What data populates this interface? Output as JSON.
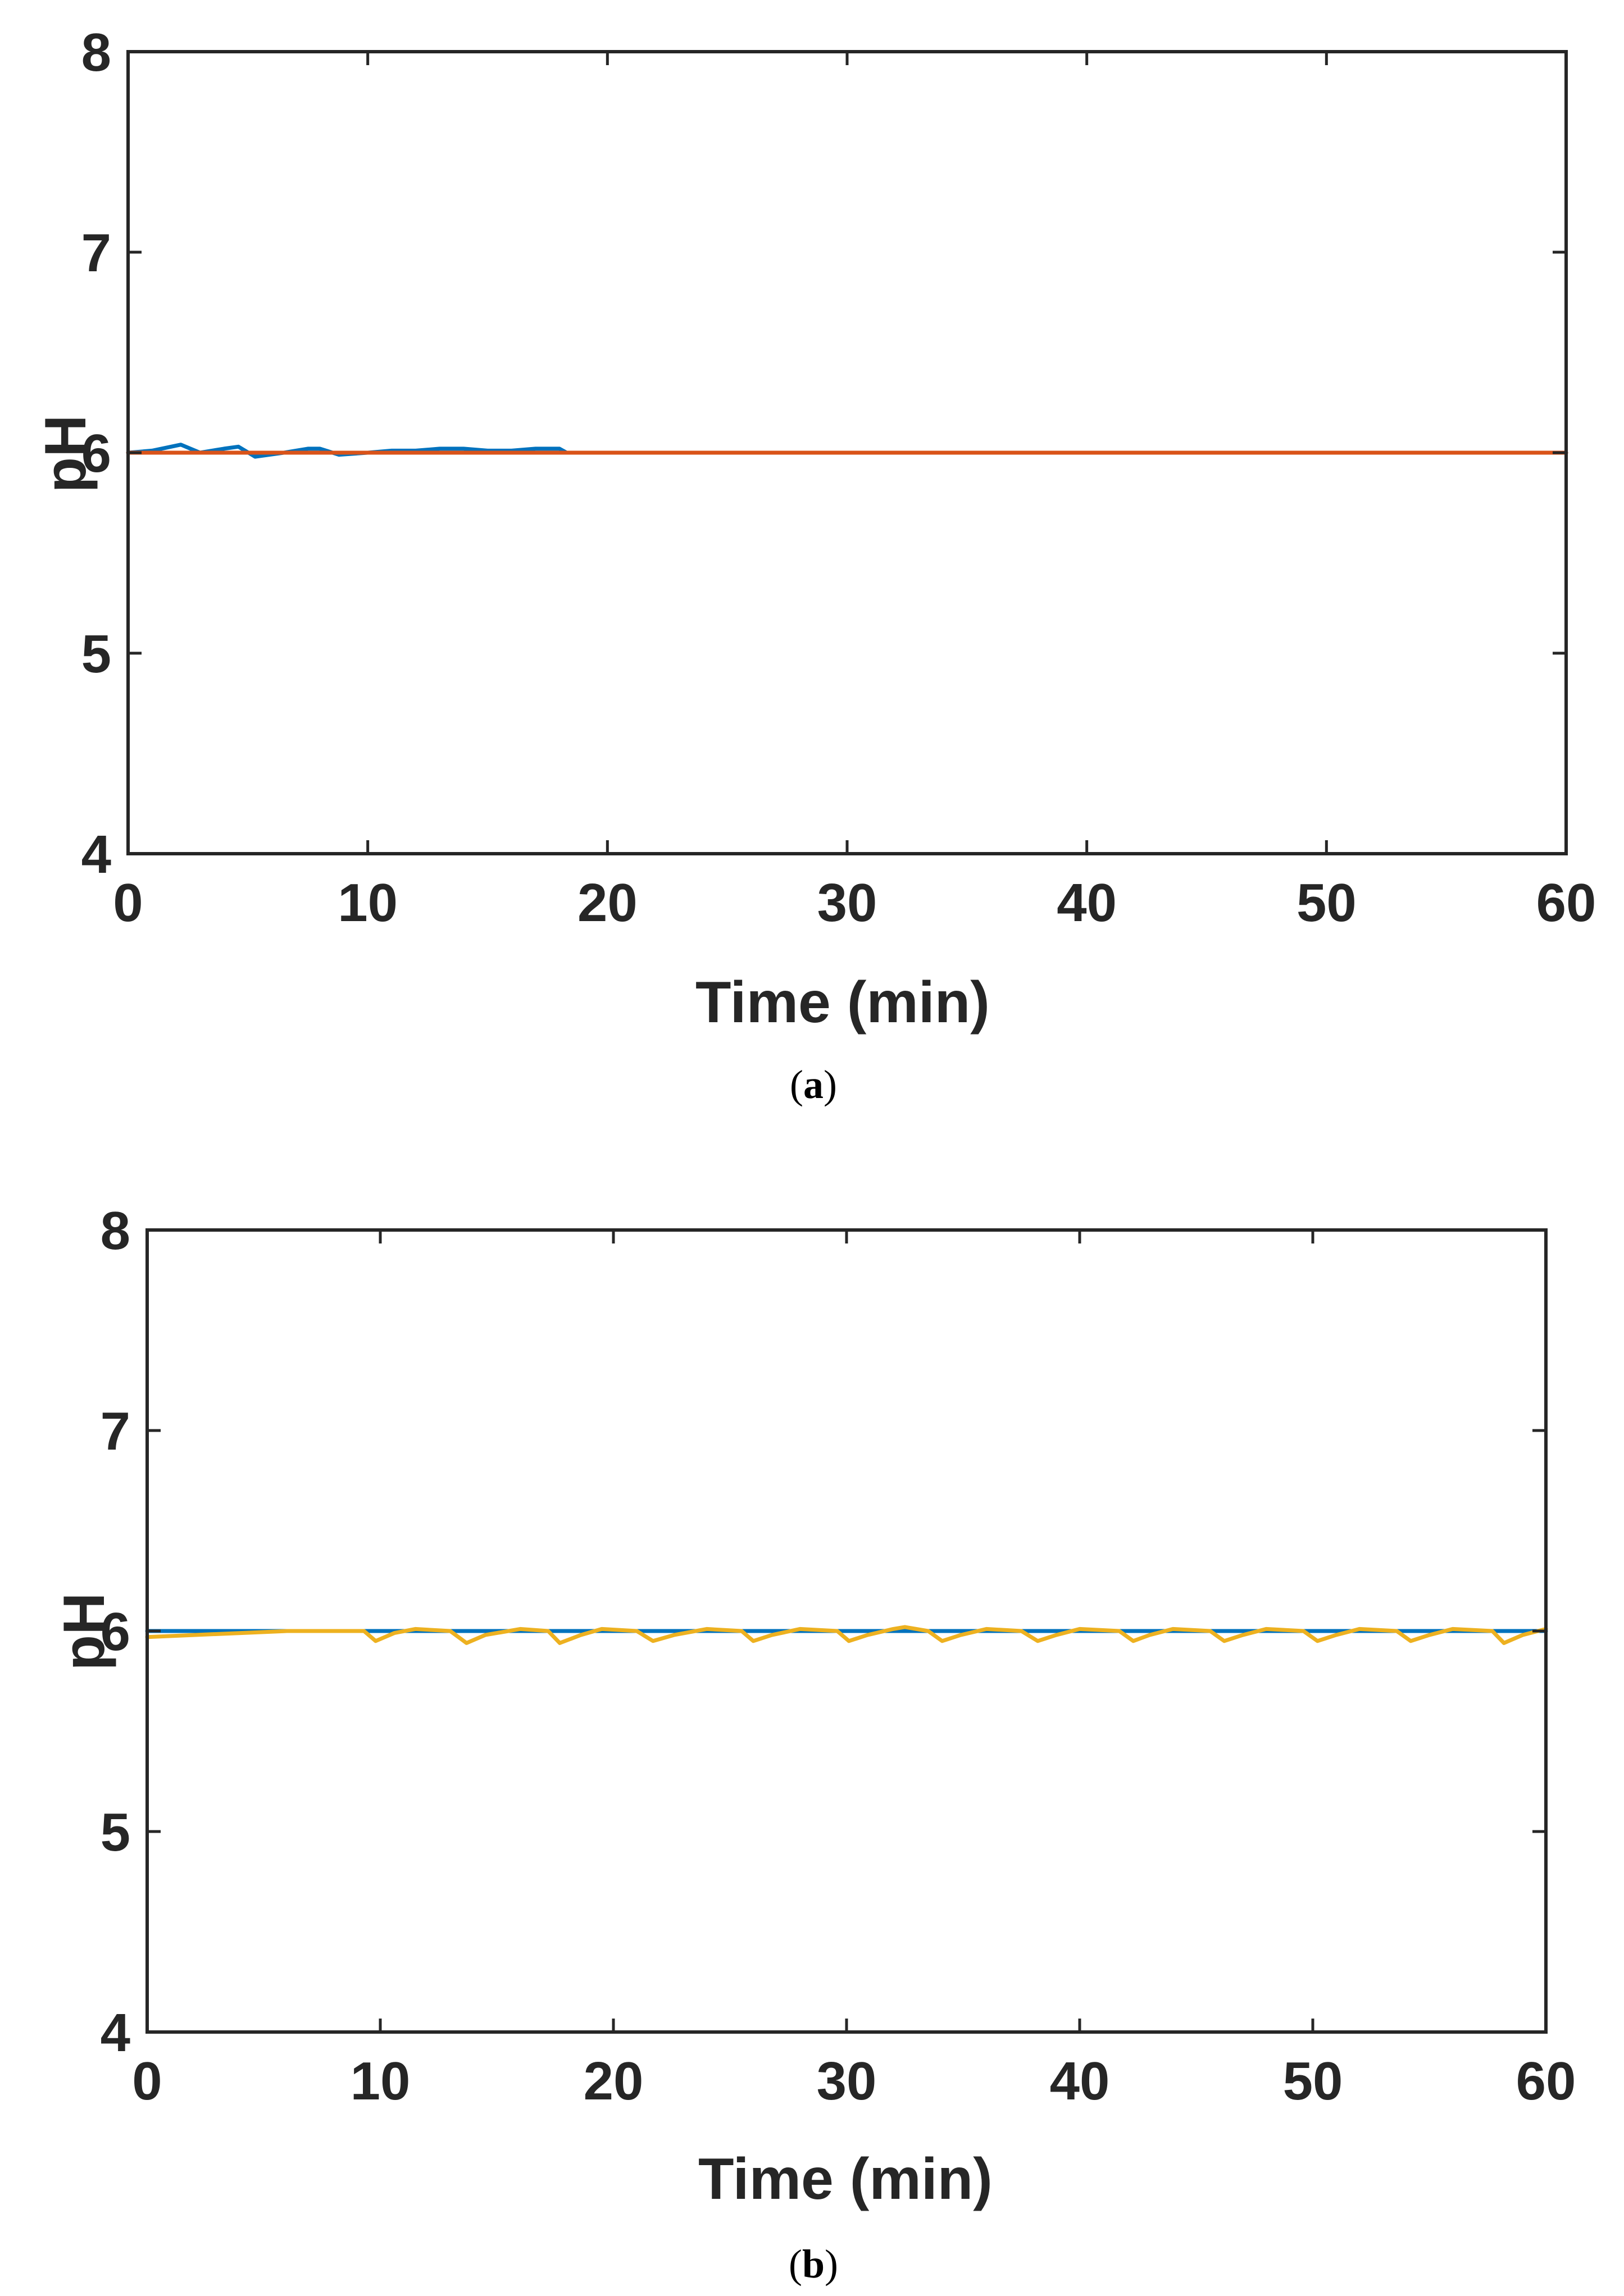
{
  "chart_data": [
    {
      "type": "line",
      "panel_label": "a",
      "title": "",
      "xlabel": "Time (min)",
      "ylabel": "pH",
      "xlim": [
        0,
        60
      ],
      "ylim": [
        4,
        8
      ],
      "xticks": [
        0,
        10,
        20,
        30,
        40,
        50,
        60
      ],
      "yticks": [
        4,
        5,
        6,
        7,
        8
      ],
      "grid": false,
      "legend": "none",
      "series": [
        {
          "color": "#0072BD",
          "x": [
            0,
            1,
            2.2,
            3,
            4,
            4.6,
            5.3,
            6.5,
            7.5,
            8,
            8.8,
            10,
            11,
            12,
            13,
            14,
            15,
            16,
            17,
            18,
            18.3,
            19,
            20,
            30,
            40,
            50,
            60
          ],
          "y": [
            6.0,
            6.01,
            6.04,
            6.0,
            6.02,
            6.03,
            5.98,
            6.0,
            6.02,
            6.02,
            5.99,
            6.0,
            6.01,
            6.01,
            6.02,
            6.02,
            6.01,
            6.01,
            6.02,
            6.02,
            6.0,
            6.0,
            6.0,
            6.0,
            6.0,
            6.0,
            6.0
          ]
        },
        {
          "color": "#D95319",
          "x": [
            0,
            10,
            20,
            30,
            40,
            50,
            60
          ],
          "y": [
            6.0,
            6.0,
            6.0,
            6.0,
            6.0,
            6.0,
            6.0
          ]
        }
      ]
    },
    {
      "type": "line",
      "panel_label": "b",
      "title": "",
      "xlabel": "Time (min)",
      "ylabel": "pH",
      "xlim": [
        0,
        60
      ],
      "ylim": [
        4,
        8
      ],
      "xticks": [
        0,
        10,
        20,
        30,
        40,
        50,
        60
      ],
      "yticks": [
        4,
        5,
        6,
        7,
        8
      ],
      "grid": false,
      "legend": "none",
      "series": [
        {
          "color": "#0072BD",
          "x": [
            0,
            10,
            20,
            30,
            40,
            50,
            60
          ],
          "y": [
            6.0,
            6.0,
            6.0,
            6.0,
            6.0,
            6.0,
            6.0
          ]
        },
        {
          "color": "#EDB120",
          "x": [
            0,
            2,
            4,
            6,
            8,
            9.3,
            9.8,
            10.6,
            11.5,
            13,
            13.7,
            14.5,
            16,
            17.2,
            17.7,
            18.6,
            19.5,
            21,
            21.7,
            22.6,
            24,
            25.5,
            26,
            26.8,
            28,
            29.6,
            30.1,
            30.9,
            32,
            32.5,
            33.5,
            34.1,
            34.9,
            36,
            37.5,
            38.2,
            39,
            40,
            41.7,
            42.3,
            43,
            44,
            45.6,
            46.2,
            47,
            48,
            49.6,
            50.2,
            51,
            52,
            53.6,
            54.2,
            55,
            56,
            57.7,
            58.2,
            59,
            60
          ],
          "y": [
            5.97,
            5.98,
            5.99,
            6.0,
            6.0,
            6.0,
            5.95,
            5.99,
            6.01,
            6.0,
            5.94,
            5.98,
            6.01,
            6.0,
            5.94,
            5.98,
            6.01,
            6.0,
            5.95,
            5.98,
            6.01,
            6.0,
            5.95,
            5.98,
            6.01,
            6.0,
            5.95,
            5.98,
            6.01,
            6.02,
            6.0,
            5.95,
            5.98,
            6.01,
            6.0,
            5.95,
            5.98,
            6.01,
            6.0,
            5.95,
            5.98,
            6.01,
            6.0,
            5.95,
            5.98,
            6.01,
            6.0,
            5.95,
            5.98,
            6.01,
            6.0,
            5.95,
            5.98,
            6.01,
            6.0,
            5.94,
            5.98,
            6.01
          ]
        }
      ]
    }
  ]
}
